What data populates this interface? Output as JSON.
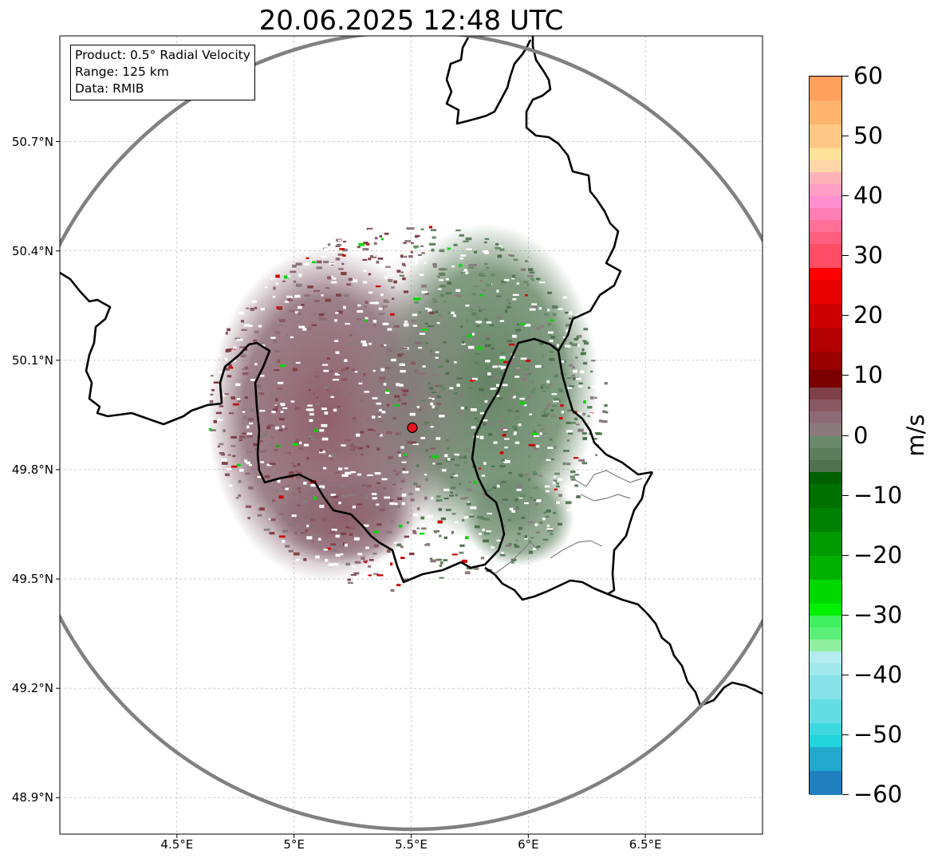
{
  "title": "20.06.2025 12:48 UTC",
  "info": {
    "product": "Product: 0.5° Radial Velocity",
    "range": "Range: 125 km",
    "data": "Data: RMIB"
  },
  "map": {
    "extent": {
      "lon_min": 4.0,
      "lon_max": 7.0,
      "lat_min": 48.8,
      "lat_max": 50.99
    },
    "radar_site": {
      "lon": 5.505,
      "lat": 49.915
    },
    "x_ticks": [
      {
        "lon": 4.5,
        "label": "4.5°E"
      },
      {
        "lon": 5.0,
        "label": "5°E"
      },
      {
        "lon": 5.5,
        "label": "5.5°E"
      },
      {
        "lon": 6.0,
        "label": "6°E"
      },
      {
        "lon": 6.5,
        "label": "6.5°E"
      }
    ],
    "y_ticks": [
      {
        "lat": 50.7,
        "label": "50.7°N"
      },
      {
        "lat": 50.4,
        "label": "50.4°N"
      },
      {
        "lat": 50.1,
        "label": "50.1°N"
      },
      {
        "lat": 49.8,
        "label": "49.8°N"
      },
      {
        "lat": 49.5,
        "label": "49.5°N"
      },
      {
        "lat": 49.2,
        "label": "49.2°N"
      },
      {
        "lat": 48.9,
        "label": "48.9°N"
      }
    ],
    "colors": {
      "range_ring": "#808080",
      "border": "#000000",
      "grid": "#b0b0b0",
      "radar_marker": "#e8141e"
    }
  },
  "colorbar": {
    "min": -60,
    "max": 60,
    "label": "m/s",
    "ticks": [
      {
        "value": 60,
        "label": "60"
      },
      {
        "value": 50,
        "label": "50"
      },
      {
        "value": 40,
        "label": "40"
      },
      {
        "value": 30,
        "label": "30"
      },
      {
        "value": 20,
        "label": "20"
      },
      {
        "value": 10,
        "label": "10"
      },
      {
        "value": 0,
        "label": "0"
      },
      {
        "value": -10,
        "label": "−10"
      },
      {
        "value": -20,
        "label": "−20"
      },
      {
        "value": -30,
        "label": "−30"
      },
      {
        "value": -40,
        "label": "−40"
      },
      {
        "value": -50,
        "label": "−50"
      },
      {
        "value": -60,
        "label": "−60"
      }
    ],
    "bins": [
      {
        "from": 56,
        "to": 60,
        "color": "#ff9f5c"
      },
      {
        "from": 52,
        "to": 56,
        "color": "#ffb46e"
      },
      {
        "from": 48,
        "to": 52,
        "color": "#ffc985"
      },
      {
        "from": 46,
        "to": 48,
        "color": "#ffe299"
      },
      {
        "from": 44,
        "to": 46,
        "color": "#ffd6a8"
      },
      {
        "from": 42,
        "to": 44,
        "color": "#ffb3b8"
      },
      {
        "from": 40,
        "to": 42,
        "color": "#ff9fc4"
      },
      {
        "from": 38,
        "to": 40,
        "color": "#ff8fd0"
      },
      {
        "from": 36,
        "to": 38,
        "color": "#ff7eb6"
      },
      {
        "from": 34,
        "to": 36,
        "color": "#ff6f96"
      },
      {
        "from": 32,
        "to": 34,
        "color": "#ff5f7f"
      },
      {
        "from": 28,
        "to": 32,
        "color": "#ff4d66"
      },
      {
        "from": 26,
        "to": 28,
        "color": "#ff0000"
      },
      {
        "from": 22,
        "to": 26,
        "color": "#e80000"
      },
      {
        "from": 18,
        "to": 22,
        "color": "#cc0000"
      },
      {
        "from": 14,
        "to": 18,
        "color": "#b30000"
      },
      {
        "from": 11,
        "to": 14,
        "color": "#990000"
      },
      {
        "from": 8,
        "to": 11,
        "color": "#7a0000"
      },
      {
        "from": 6,
        "to": 8,
        "color": "#804048"
      },
      {
        "from": 4,
        "to": 6,
        "color": "#8a5862"
      },
      {
        "from": 2,
        "to": 4,
        "color": "#8c6a76"
      },
      {
        "from": 0,
        "to": 2,
        "color": "#8a7a7e"
      },
      {
        "from": -2,
        "to": 0,
        "color": "#6b8a6b"
      },
      {
        "from": -4,
        "to": -2,
        "color": "#5d7e5d"
      },
      {
        "from": -6,
        "to": -4,
        "color": "#4f714f"
      },
      {
        "from": -8,
        "to": -6,
        "color": "#006000"
      },
      {
        "from": -12,
        "to": -8,
        "color": "#007000"
      },
      {
        "from": -16,
        "to": -12,
        "color": "#008000"
      },
      {
        "from": -20,
        "to": -16,
        "color": "#009a00"
      },
      {
        "from": -24,
        "to": -20,
        "color": "#00b000"
      },
      {
        "from": -28,
        "to": -24,
        "color": "#00d800"
      },
      {
        "from": -30,
        "to": -28,
        "color": "#00f000"
      },
      {
        "from": -32,
        "to": -30,
        "color": "#40f060"
      },
      {
        "from": -34,
        "to": -32,
        "color": "#5cf07a"
      },
      {
        "from": -36,
        "to": -34,
        "color": "#90f0a0"
      },
      {
        "from": -38,
        "to": -36,
        "color": "#b4ecf0"
      },
      {
        "from": -40,
        "to": -38,
        "color": "#a0e8ec"
      },
      {
        "from": -44,
        "to": -40,
        "color": "#86e2e8"
      },
      {
        "from": -48,
        "to": -44,
        "color": "#64dce4"
      },
      {
        "from": -50,
        "to": -48,
        "color": "#3ed8e0"
      },
      {
        "from": -52,
        "to": -50,
        "color": "#22d4dc"
      },
      {
        "from": -56,
        "to": -52,
        "color": "#22a8cc"
      },
      {
        "from": -60,
        "to": -56,
        "color": "#1f7fbf"
      }
    ]
  }
}
